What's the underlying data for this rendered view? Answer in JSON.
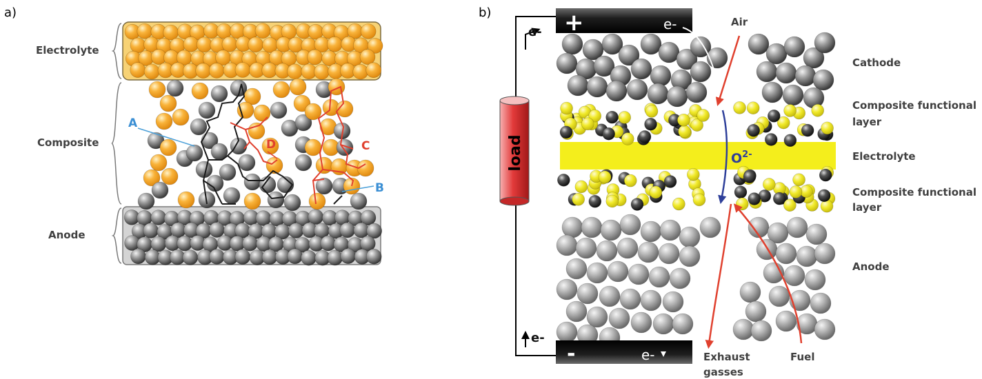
{
  "panels": {
    "a": {
      "panel_label": "a)",
      "layers": {
        "electrolyte": "Electrolyte",
        "composite": "Composite",
        "anode": "Anode"
      },
      "paths": {
        "A": "A",
        "B": "B",
        "C": "C",
        "D": "D"
      }
    },
    "b": {
      "panel_label": "b)",
      "terminals": {
        "plus": "+",
        "minus": "-"
      },
      "electron_top": "e-",
      "electron_bottom": "e-",
      "electron_left_top": "e-",
      "electron_left_bottom": "e-",
      "load": "load",
      "ion": "O",
      "ion_charge": "2-",
      "gases": {
        "air": "Air",
        "exhaust_line1": "Exhaust",
        "exhaust_line2": "gasses",
        "fuel": "Fuel"
      },
      "layers": {
        "cathode": "Cathode",
        "cfl_top_line1": "Composite functional",
        "cfl_top_line2": "layer",
        "electrolyte": "Electrolyte",
        "cfl_bottom_line1": "Composite functional",
        "cfl_bottom_line2": "layer",
        "anode": "Anode"
      }
    }
  },
  "colors": {
    "electrolyte_orange": "#f7a928",
    "electrolyte_yellow": "#f4ee1c",
    "nickel_grey": "#8c8c8c",
    "path_black": "#1a1a1a",
    "path_red": "#e0402e",
    "path_blue": "#3b8fd4",
    "ion_blue": "#2e3f9a",
    "load_red": "#e23a3a"
  }
}
